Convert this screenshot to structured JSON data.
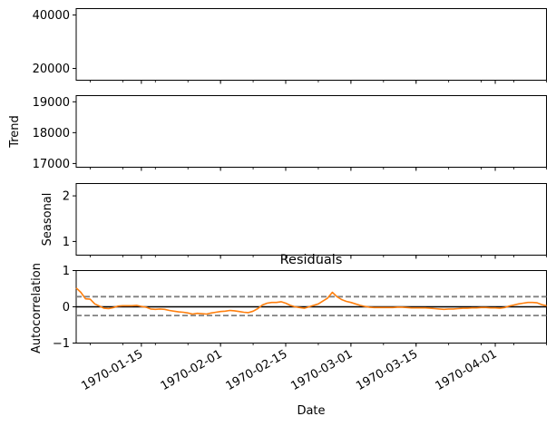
{
  "chart_data": [
    {
      "type": "line",
      "panel": "observed",
      "title": "",
      "xlabel": "",
      "ylabel": "",
      "ylim": [
        15600,
        42400
      ],
      "yticks": [
        20000,
        40000
      ],
      "yticklabels": [
        "20000",
        "40000"
      ],
      "series": [],
      "grid": false
    },
    {
      "type": "line",
      "panel": "trend",
      "title": "",
      "xlabel": "",
      "ylabel": "Trend",
      "ylim": [
        16880,
        19200
      ],
      "yticks": [
        17000,
        18000,
        19000
      ],
      "yticklabels": [
        "17000",
        "18000",
        "19000"
      ],
      "series": [],
      "grid": false
    },
    {
      "type": "line",
      "panel": "seasonal",
      "title": "",
      "xlabel": "",
      "ylabel": "Seasonal",
      "ylim": [
        0.7,
        2.27
      ],
      "yticks": [
        1,
        2
      ],
      "yticklabels": [
        "1",
        "2"
      ],
      "series": [],
      "grid": false
    },
    {
      "type": "line",
      "panel": "residuals",
      "title": "Residuals",
      "xlabel": "Date",
      "ylabel": "Autocorrelation",
      "xlim": [
        "1970-01-01",
        "1970-04-12"
      ],
      "ylim": [
        -1,
        1
      ],
      "yticks": [
        -1,
        0,
        1
      ],
      "yticklabels": [
        "−1",
        "0",
        "1"
      ],
      "xticks": [
        "1970-01-15",
        "1970-02-01",
        "1970-02-15",
        "1970-03-01",
        "1970-03-15",
        "1970-04-01"
      ],
      "xticklabels": [
        "1970-01-15",
        "1970-02-01",
        "1970-02-15",
        "1970-03-01",
        "1970-03-15",
        "1970-04-01"
      ],
      "reference_lines": {
        "zero": 0,
        "confidence_upper": 0.28,
        "confidence_lower": -0.24
      },
      "colors": {
        "series": "#ff7f0e",
        "zero_line": "#000000",
        "confidence": "#808080"
      },
      "series": [
        {
          "x": [
            "1970-01-01",
            "1970-01-02",
            "1970-01-03",
            "1970-01-04",
            "1970-01-05",
            "1970-01-06",
            "1970-01-07",
            "1970-01-08",
            "1970-01-09",
            "1970-01-10",
            "1970-01-11",
            "1970-01-12",
            "1970-01-13",
            "1970-01-14",
            "1970-01-15",
            "1970-01-16",
            "1970-01-17",
            "1970-01-18",
            "1970-01-19",
            "1970-01-20",
            "1970-01-21",
            "1970-01-22",
            "1970-01-23",
            "1970-01-24",
            "1970-01-25",
            "1970-01-26",
            "1970-01-27",
            "1970-01-28",
            "1970-01-29",
            "1970-01-30",
            "1970-01-31",
            "1970-02-01",
            "1970-02-02",
            "1970-02-03",
            "1970-02-04",
            "1970-02-05",
            "1970-02-06",
            "1970-02-07",
            "1970-02-08",
            "1970-02-09",
            "1970-02-10",
            "1970-02-11",
            "1970-02-12",
            "1970-02-13",
            "1970-02-14",
            "1970-02-15",
            "1970-02-16",
            "1970-02-17",
            "1970-02-18",
            "1970-02-19",
            "1970-02-20",
            "1970-02-21",
            "1970-02-22",
            "1970-02-23",
            "1970-02-24",
            "1970-02-25",
            "1970-02-26",
            "1970-02-27",
            "1970-02-28",
            "1970-03-01",
            "1970-03-02",
            "1970-03-03",
            "1970-03-04",
            "1970-03-05",
            "1970-03-06",
            "1970-03-07",
            "1970-03-08",
            "1970-03-09",
            "1970-03-10",
            "1970-03-11",
            "1970-03-12",
            "1970-03-13",
            "1970-03-14",
            "1970-03-15",
            "1970-03-16",
            "1970-03-17",
            "1970-03-18",
            "1970-03-19",
            "1970-03-20",
            "1970-03-21",
            "1970-03-22",
            "1970-03-23",
            "1970-03-24",
            "1970-03-25",
            "1970-03-26",
            "1970-03-27",
            "1970-03-28",
            "1970-03-29",
            "1970-03-30",
            "1970-03-31",
            "1970-04-01",
            "1970-04-02",
            "1970-04-03",
            "1970-04-04",
            "1970-04-05",
            "1970-04-06",
            "1970-04-07",
            "1970-04-08",
            "1970-04-09",
            "1970-04-10",
            "1970-04-11",
            "1970-04-12"
          ],
          "values": [
            0.52,
            0.4,
            0.22,
            0.21,
            0.08,
            0.02,
            -0.04,
            -0.05,
            -0.02,
            0.02,
            0.03,
            0.03,
            0.03,
            0.04,
            0.01,
            -0.01,
            -0.06,
            -0.07,
            -0.06,
            -0.07,
            -0.1,
            -0.12,
            -0.14,
            -0.15,
            -0.17,
            -0.2,
            -0.18,
            -0.19,
            -0.2,
            -0.17,
            -0.15,
            -0.13,
            -0.12,
            -0.1,
            -0.11,
            -0.13,
            -0.15,
            -0.16,
            -0.12,
            -0.05,
            0.05,
            0.1,
            0.12,
            0.12,
            0.14,
            0.1,
            0.04,
            0.0,
            -0.02,
            -0.04,
            0.0,
            0.04,
            0.08,
            0.16,
            0.24,
            0.4,
            0.28,
            0.2,
            0.15,
            0.12,
            0.08,
            0.04,
            0.01,
            -0.01,
            -0.02,
            -0.02,
            -0.02,
            -0.02,
            -0.02,
            -0.01,
            -0.01,
            -0.02,
            -0.03,
            -0.03,
            -0.03,
            -0.03,
            -0.04,
            -0.05,
            -0.06,
            -0.07,
            -0.06,
            -0.06,
            -0.05,
            -0.04,
            -0.04,
            -0.03,
            -0.03,
            -0.02,
            -0.02,
            -0.03,
            -0.03,
            -0.04,
            -0.02,
            0.02,
            0.05,
            0.08,
            0.1,
            0.12,
            0.12,
            0.11,
            0.06,
            0.03
          ]
        }
      ],
      "grid": false
    }
  ]
}
